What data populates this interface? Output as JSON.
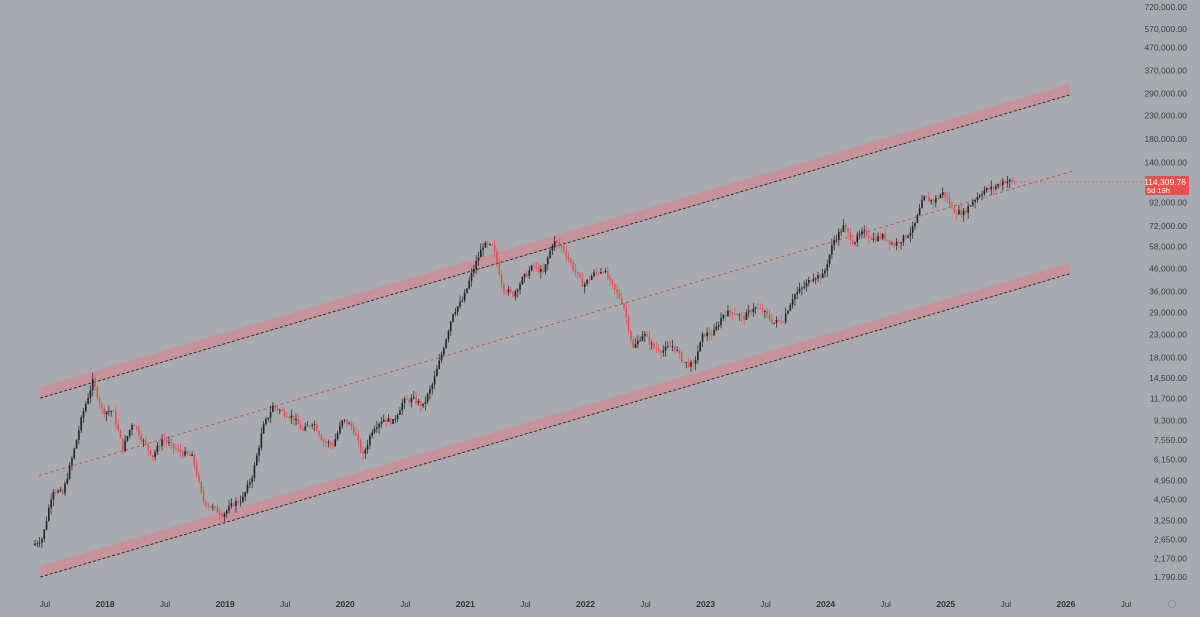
{
  "chart_data": {
    "type": "candlestick",
    "scale": "log",
    "grid": false,
    "legend": "none",
    "colors": {
      "background": "#a8aaaf",
      "up": "#1f2126",
      "down": "#e0524f",
      "channel_band": "#c98f99",
      "price_tag": "#e8514e"
    },
    "y_tick_labels": [
      "720,000.00",
      "570,000.00",
      "470,000.00",
      "370,000.00",
      "290,000.00",
      "230,000.00",
      "180,000.00",
      "140,000.00",
      "92,000.00",
      "72,000.00",
      "58,000.00",
      "46,000.00",
      "36,000.00",
      "29,000.00",
      "23,000.00",
      "18,000.00",
      "14,500.00",
      "11,700.00",
      "9,300.00",
      "7,550.00",
      "6,150.00",
      "4,950.00",
      "4,050.00",
      "3,250.00",
      "2,650.00",
      "2,170.00",
      "1,790.00"
    ],
    "x_tick_labels": [
      "Jul",
      "2018",
      "Jul",
      "2019",
      "Jul",
      "2020",
      "Jul",
      "2021",
      "Jul",
      "2022",
      "Jul",
      "2023",
      "Jul",
      "2024",
      "Jul",
      "2025",
      "Jul",
      "2026",
      "Jul"
    ],
    "last_price": "114,309.76",
    "countdown": "5d 19h",
    "price_path": [
      [
        "2017-06",
        2500
      ],
      [
        "2017-07",
        2700
      ],
      [
        "2017-08",
        4500
      ],
      [
        "2017-09",
        4300
      ],
      [
        "2017-10",
        6400
      ],
      [
        "2017-11",
        10000
      ],
      [
        "2017-12",
        14000
      ],
      [
        "2018-01",
        10200
      ],
      [
        "2018-02",
        10300
      ],
      [
        "2018-03",
        6900
      ],
      [
        "2018-04",
        9200
      ],
      [
        "2018-05",
        7500
      ],
      [
        "2018-06",
        6400
      ],
      [
        "2018-07",
        7700
      ],
      [
        "2018-08",
        7000
      ],
      [
        "2018-09",
        6600
      ],
      [
        "2018-10",
        6300
      ],
      [
        "2018-11",
        4000
      ],
      [
        "2018-12",
        3700
      ],
      [
        "2019-01",
        3450
      ],
      [
        "2019-02",
        3850
      ],
      [
        "2019-03",
        4100
      ],
      [
        "2019-04",
        5300
      ],
      [
        "2019-05",
        8600
      ],
      [
        "2019-06",
        10800
      ],
      [
        "2019-07",
        10100
      ],
      [
        "2019-08",
        9600
      ],
      [
        "2019-09",
        8300
      ],
      [
        "2019-10",
        9200
      ],
      [
        "2019-11",
        7500
      ],
      [
        "2019-12",
        7200
      ],
      [
        "2020-01",
        9350
      ],
      [
        "2020-02",
        8600
      ],
      [
        "2020-03",
        6400
      ],
      [
        "2020-04",
        8600
      ],
      [
        "2020-05",
        9450
      ],
      [
        "2020-06",
        9150
      ],
      [
        "2020-07",
        11300
      ],
      [
        "2020-08",
        11650
      ],
      [
        "2020-09",
        10800
      ],
      [
        "2020-10",
        13800
      ],
      [
        "2020-11",
        19700
      ],
      [
        "2020-12",
        29000
      ],
      [
        "2021-01",
        33100
      ],
      [
        "2021-02",
        45200
      ],
      [
        "2021-03",
        58800
      ],
      [
        "2021-04",
        57700
      ],
      [
        "2021-05",
        37300
      ],
      [
        "2021-06",
        35000
      ],
      [
        "2021-07",
        41500
      ],
      [
        "2021-08",
        47100
      ],
      [
        "2021-09",
        43800
      ],
      [
        "2021-10",
        61300
      ],
      [
        "2021-11",
        57000
      ],
      [
        "2021-12",
        46200
      ],
      [
        "2022-01",
        38500
      ],
      [
        "2022-02",
        43200
      ],
      [
        "2022-03",
        45500
      ],
      [
        "2022-04",
        37600
      ],
      [
        "2022-05",
        31800
      ],
      [
        "2022-06",
        19800
      ],
      [
        "2022-07",
        23300
      ],
      [
        "2022-08",
        20000
      ],
      [
        "2022-09",
        19400
      ],
      [
        "2022-10",
        20500
      ],
      [
        "2022-11",
        17200
      ],
      [
        "2022-12",
        16500
      ],
      [
        "2023-01",
        23100
      ],
      [
        "2023-02",
        23100
      ],
      [
        "2023-03",
        28500
      ],
      [
        "2023-04",
        29200
      ],
      [
        "2023-05",
        27200
      ],
      [
        "2023-06",
        30500
      ],
      [
        "2023-07",
        29200
      ],
      [
        "2023-08",
        25900
      ],
      [
        "2023-09",
        26900
      ],
      [
        "2023-10",
        34500
      ],
      [
        "2023-11",
        37700
      ],
      [
        "2023-12",
        42300
      ],
      [
        "2024-01",
        42600
      ],
      [
        "2024-02",
        61200
      ],
      [
        "2024-03",
        71300
      ],
      [
        "2024-04",
        60600
      ],
      [
        "2024-05",
        67500
      ],
      [
        "2024-06",
        62700
      ],
      [
        "2024-07",
        64600
      ],
      [
        "2024-08",
        59000
      ],
      [
        "2024-09",
        63300
      ],
      [
        "2024-10",
        70200
      ],
      [
        "2024-11",
        96400
      ],
      [
        "2024-12",
        93400
      ],
      [
        "2025-01",
        102400
      ],
      [
        "2025-02",
        84300
      ],
      [
        "2025-03",
        82500
      ],
      [
        "2025-04",
        94200
      ],
      [
        "2025-05",
        104600
      ],
      [
        "2025-06",
        107100
      ],
      [
        "2025-07",
        115700
      ],
      [
        "2025-08",
        114300
      ]
    ]
  }
}
